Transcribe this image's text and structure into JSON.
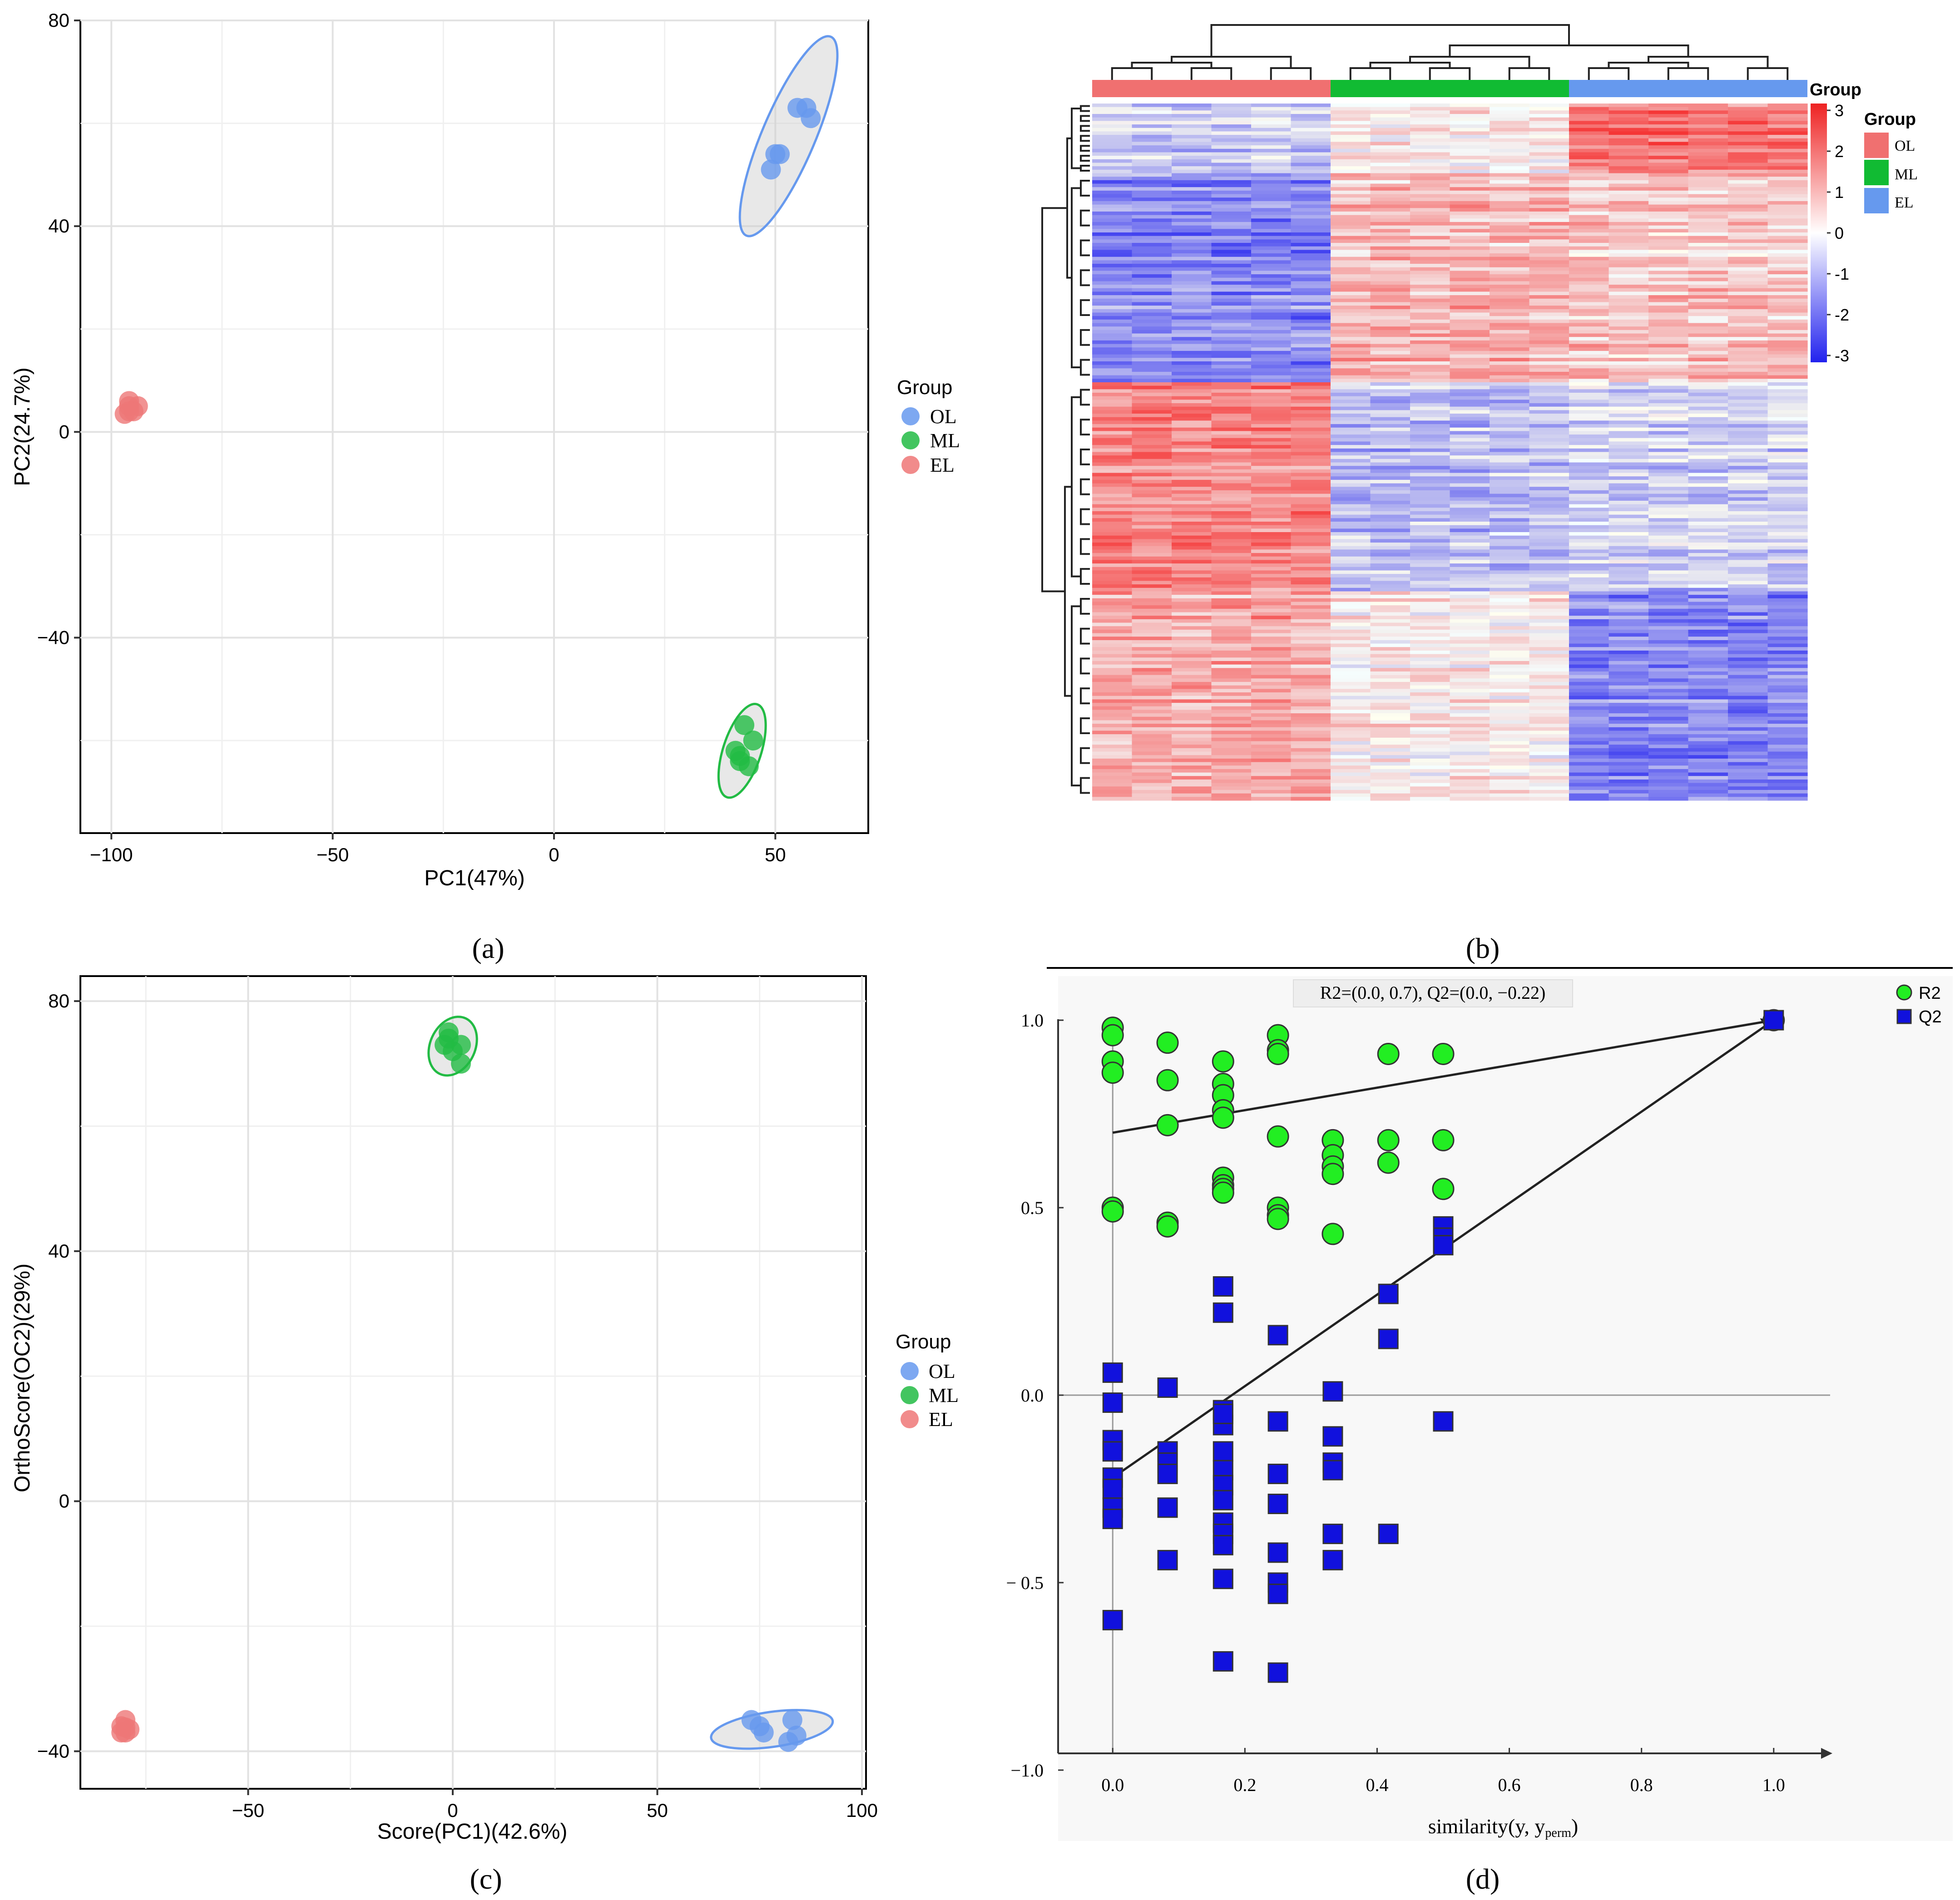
{
  "panels": {
    "a": {
      "caption": "(a)"
    },
    "b": {
      "caption": "(b)"
    },
    "c": {
      "caption": "(c)"
    },
    "d": {
      "caption": "(d)"
    }
  },
  "colors": {
    "OL": "#6699ee",
    "ML": "#22bb44",
    "EL": "#ee7777",
    "hm_OL": "#f07070",
    "hm_ML": "#11bb33",
    "hm_EL": "#6699ee",
    "r2": "#22ee22",
    "q2": "#1111dd"
  },
  "chart_data": [
    {
      "id": "a",
      "type": "scatter",
      "title": "",
      "xlabel": "PC1(47%)",
      "ylabel": "PC2(24.7%)",
      "xlim": [
        -107,
        71
      ],
      "ylim": [
        -78,
        80
      ],
      "xticks": [
        -100,
        -50,
        0,
        50
      ],
      "xtick_labels": [
        "−100",
        "−50",
        "0",
        "50"
      ],
      "yticks": [
        -40,
        0,
        40,
        80
      ],
      "ytick_labels": [
        "−40",
        "0",
        "40",
        "80"
      ],
      "grid": true,
      "legend": {
        "title": "Group",
        "position": "right",
        "entries": [
          "OL",
          "ML",
          "EL"
        ]
      },
      "series": [
        {
          "name": "OL",
          "points": [
            [
              55,
              63
            ],
            [
              57,
              63
            ],
            [
              58,
              61
            ],
            [
              50,
              54
            ],
            [
              51,
              54
            ],
            [
              49,
              51
            ]
          ],
          "ellipse": {
            "cx": 53,
            "cy": 57.5,
            "rx": 6,
            "ry": 21,
            "angle": 23
          }
        },
        {
          "name": "ML",
          "points": [
            [
              43,
              -57
            ],
            [
              45,
              -60
            ],
            [
              41,
              -62
            ],
            [
              42,
              -63
            ],
            [
              44,
              -65
            ],
            [
              42,
              -64
            ]
          ],
          "ellipse": {
            "cx": 42.5,
            "cy": -62,
            "rx": 4.3,
            "ry": 9.5,
            "angle": 18
          }
        },
        {
          "name": "EL",
          "points": [
            [
              -96,
              5
            ],
            [
              -95,
              4
            ],
            [
              -97,
              3.5
            ],
            [
              -96,
              6
            ],
            [
              -94,
              5
            ],
            [
              -96,
              4
            ]
          ]
        }
      ]
    },
    {
      "id": "b",
      "type": "heatmap",
      "groups": [
        "OL",
        "ML",
        "EL"
      ],
      "legend_title": "Group",
      "column_annotation_label": "Group",
      "colorbar_ticks": [
        3,
        2,
        1,
        0,
        -1,
        -2,
        -3
      ],
      "colorbar_labels": [
        "3",
        "2",
        "1",
        "0",
        "-1",
        "-2",
        "-3"
      ],
      "columns_per_group": 6,
      "row_blocks": [
        {
          "rows": 20,
          "means": [
            -0.6,
            0.2,
            1.8
          ]
        },
        {
          "rows": 60,
          "means": [
            -1.5,
            1.0,
            0.8
          ]
        },
        {
          "rows": 60,
          "means": [
            1.6,
            -0.9,
            -0.6
          ]
        },
        {
          "rows": 60,
          "means": [
            1.2,
            0.3,
            -1.5
          ]
        }
      ]
    },
    {
      "id": "c",
      "type": "scatter",
      "title": "",
      "xlabel": "Score(PC1)(42.6%)",
      "ylabel": "OrthoScore(OC2)(29%)",
      "xlim": [
        -91,
        101
      ],
      "ylim": [
        -46,
        84
      ],
      "xticks": [
        -50,
        0,
        50,
        100
      ],
      "xtick_labels": [
        "−50",
        "0",
        "50",
        "100"
      ],
      "yticks": [
        -40,
        0,
        40,
        80
      ],
      "ytick_labels": [
        "−40",
        "0",
        "40",
        "80"
      ],
      "grid": true,
      "legend": {
        "title": "Group",
        "position": "right",
        "entries": [
          "OL",
          "ML",
          "EL"
        ]
      },
      "series": [
        {
          "name": "OL",
          "points": [
            [
              73,
              -35
            ],
            [
              75,
              -36
            ],
            [
              76,
              -37
            ],
            [
              83,
              -35
            ],
            [
              84,
              -37.5
            ],
            [
              82,
              -38.5
            ]
          ],
          "ellipse": {
            "cx": 78,
            "cy": -36.5,
            "rx": 15,
            "ry": 2.8,
            "angle": -8
          }
        },
        {
          "name": "ML",
          "points": [
            [
              -2,
              73
            ],
            [
              -1,
              75
            ],
            [
              0,
              72
            ],
            [
              2,
              73
            ],
            [
              2,
              70
            ],
            [
              -1,
              74
            ]
          ],
          "ellipse": {
            "cx": 0,
            "cy": 72.8,
            "rx": 5.5,
            "ry": 4.9,
            "angle": 25
          }
        },
        {
          "name": "EL",
          "points": [
            [
              -80,
              -35
            ],
            [
              -81,
              -36
            ],
            [
              -80,
              -37
            ],
            [
              -79,
              -36.5
            ],
            [
              -80,
              -36.2
            ],
            [
              -81,
              -37
            ]
          ]
        }
      ]
    },
    {
      "id": "d",
      "type": "scatter",
      "title": "R2=(0.0, 0.7), Q2=(0.0, −0.22)",
      "xlabel": "similarity(y, y",
      "xlabel_subscript": "perm",
      "xlabel_close": ")",
      "ylabel": "",
      "xlim": [
        -0.04,
        1.04
      ],
      "ylim": [
        -1.12,
        1.12
      ],
      "xticks": [
        0,
        0.2,
        0.4,
        0.6,
        0.8,
        1.0
      ],
      "xtick_labels": [
        "0.0",
        "0.2",
        "0.4",
        "0.6",
        "0.8",
        "1.0"
      ],
      "yticks": [
        1,
        0.5,
        0,
        -0.5,
        -1
      ],
      "ytick_labels": [
        "1.0",
        "0.5",
        "0.0",
        "− 0.5",
        "−1.0"
      ],
      "legend": {
        "position": "top-right",
        "entries": [
          "R2",
          "Q2"
        ]
      },
      "series": [
        {
          "name": "R2",
          "marker": "circle",
          "x": [
            0,
            0,
            0,
            0,
            0,
            0,
            0.083,
            0.083,
            0.083,
            0.083,
            0.083,
            0.167,
            0.167,
            0.167,
            0.167,
            0.167,
            0.167,
            0.167,
            0.167,
            0.167,
            0.25,
            0.25,
            0.25,
            0.25,
            0.25,
            0.25,
            0.25,
            0.333,
            0.333,
            0.333,
            0.333,
            0.333,
            0.417,
            0.417,
            0.417,
            0.5,
            0.5,
            0.5,
            1.0
          ],
          "y": [
            0.98,
            0.96,
            0.89,
            0.86,
            0.5,
            0.49,
            0.94,
            0.84,
            0.72,
            0.46,
            0.45,
            0.89,
            0.83,
            0.8,
            0.76,
            0.74,
            0.58,
            0.56,
            0.55,
            0.54,
            0.96,
            0.92,
            0.69,
            0.5,
            0.48,
            0.47,
            0.91,
            0.68,
            0.64,
            0.61,
            0.59,
            0.43,
            0.91,
            0.68,
            0.62,
            0.91,
            0.68,
            0.55,
            1.0
          ]
        },
        {
          "name": "Q2",
          "marker": "square",
          "x": [
            0,
            0,
            0,
            0,
            0,
            0,
            0,
            0,
            0,
            0.083,
            0.083,
            0.083,
            0.083,
            0.083,
            0.083,
            0.167,
            0.167,
            0.167,
            0.167,
            0.167,
            0.167,
            0.167,
            0.167,
            0.167,
            0.167,
            0.167,
            0.167,
            0.167,
            0.167,
            0.25,
            0.25,
            0.25,
            0.25,
            0.25,
            0.25,
            0.25,
            0.25,
            0.333,
            0.333,
            0.333,
            0.333,
            0.333,
            0.333,
            0.417,
            0.417,
            0.417,
            0.5,
            0.5,
            0.5,
            0.5,
            1.0
          ],
          "y": [
            0.06,
            -0.02,
            -0.12,
            -0.15,
            -0.22,
            -0.25,
            -0.3,
            -0.33,
            -0.6,
            0.02,
            -0.15,
            -0.18,
            -0.21,
            -0.3,
            -0.44,
            0.29,
            0.22,
            -0.04,
            -0.08,
            -0.15,
            -0.2,
            -0.24,
            -0.28,
            -0.34,
            -0.37,
            -0.4,
            -0.49,
            -0.71,
            -0.05,
            0.16,
            -0.07,
            -0.21,
            -0.29,
            -0.42,
            -0.5,
            -0.53,
            -0.74,
            0.01,
            -0.11,
            -0.18,
            -0.2,
            -0.37,
            -0.44,
            0.27,
            0.15,
            -0.37,
            0.45,
            0.42,
            0.4,
            -0.07,
            1.0
          ]
        }
      ],
      "fit_lines": [
        {
          "name": "R2",
          "from": [
            0,
            0.7
          ],
          "to": [
            1,
            1
          ]
        },
        {
          "name": "Q2",
          "from": [
            0,
            -0.22
          ],
          "to": [
            1,
            1
          ]
        }
      ]
    }
  ]
}
